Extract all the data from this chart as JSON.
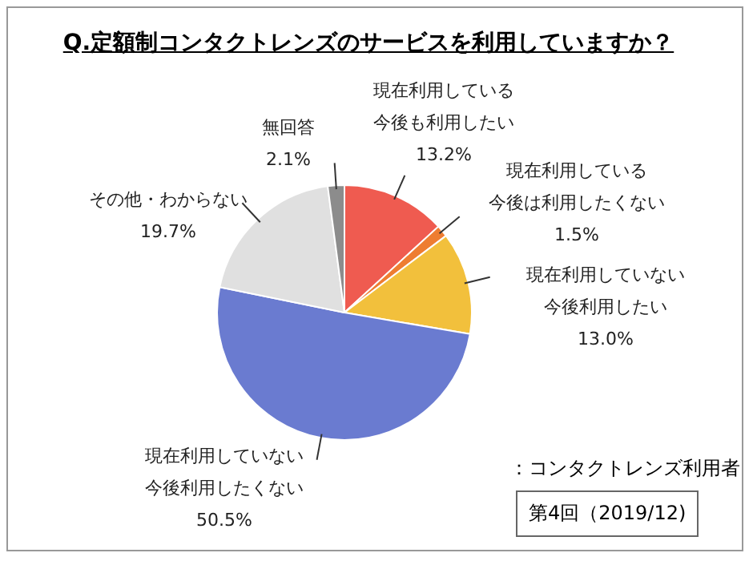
{
  "chart_data": {
    "type": "pie",
    "title": "Q.定額制コンタクトレンズのサービスを利用していますか？",
    "categories": [
      "現在利用している今後も利用したい",
      "現在利用している今後は利用したくない",
      "現在利用していない今後利用したい",
      "現在利用していない今後利用したくない",
      "その他・わからない",
      "無回答"
    ],
    "values": [
      13.2,
      1.5,
      13.0,
      50.5,
      19.7,
      2.1
    ],
    "value_labels": [
      "13.2%",
      "1.5%",
      "13.0%",
      "50.5%",
      "19.7%",
      "2.1%"
    ],
    "colors": [
      "#ef5b50",
      "#ee7d31",
      "#f2c03c",
      "#6a7bd0",
      "#e0e0e0",
      "#8c8c8c"
    ],
    "legend": false,
    "annotations": [
      "：コンタクトレンズ利用者",
      "第4回（2019/12)"
    ]
  }
}
